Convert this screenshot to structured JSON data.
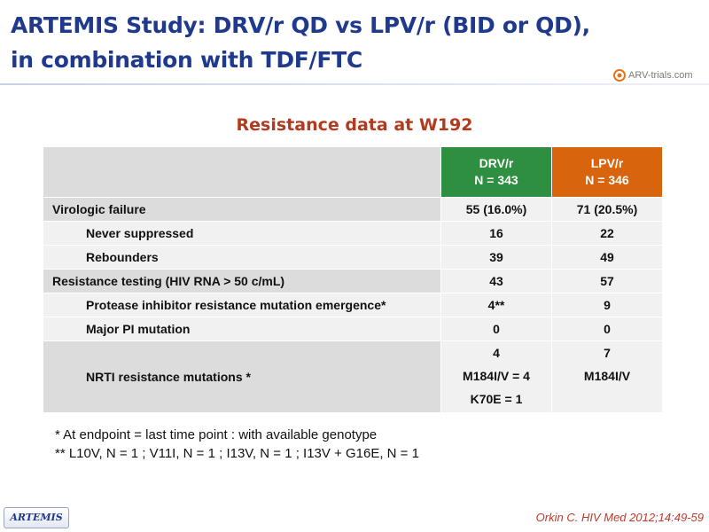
{
  "title_line1": "ARTEMIS Study: DRV/r QD vs LPV/r (BID or QD),",
  "title_line2": "in combination with TDF/FTC",
  "logo_text": "ARV-trials.com",
  "subtitle": "Resistance data at W192",
  "table": {
    "col1": {
      "name": "DRV/r",
      "n": "N = 343"
    },
    "col2": {
      "name": "LPV/r",
      "n": "N = 346"
    },
    "rows": [
      {
        "label": "Virologic failure",
        "v1": "55 (16.0%)",
        "v2": "71 (20.5%)"
      },
      {
        "label": "Never suppressed",
        "v1": "16",
        "v2": "22"
      },
      {
        "label": "Rebounders",
        "v1": "39",
        "v2": "49"
      },
      {
        "label": "Resistance testing (HIV RNA > 50 c/mL)",
        "v1": "43",
        "v2": "57"
      },
      {
        "label": "Protease inhibitor resistance mutation emergence*",
        "v1": "4**",
        "v2": "9"
      },
      {
        "label": "Major PI mutation",
        "v1": "0",
        "v2": "0"
      },
      {
        "label": "NRTI resistance mutations *",
        "v1_lines": [
          "4",
          "M184I/V = 4",
          "K70E = 1"
        ],
        "v2_lines": [
          "7",
          "M184I/V"
        ]
      }
    ]
  },
  "footnote1": "* At endpoint = last time point : with available genotype",
  "footnote2": "** L10V, N = 1 ; V11I, N = 1 ; I13V, N = 1 ; I13V + G16E, N = 1",
  "badge": "ARTEMIS",
  "reference": "Orkin C. HIV Med 2012;14:49-59",
  "colors": {
    "title": "#1f3a8c",
    "subtitle": "#b23a1f",
    "drv": "#2d8f3f",
    "lpv": "#d8640e",
    "reference": "#c0392b"
  }
}
